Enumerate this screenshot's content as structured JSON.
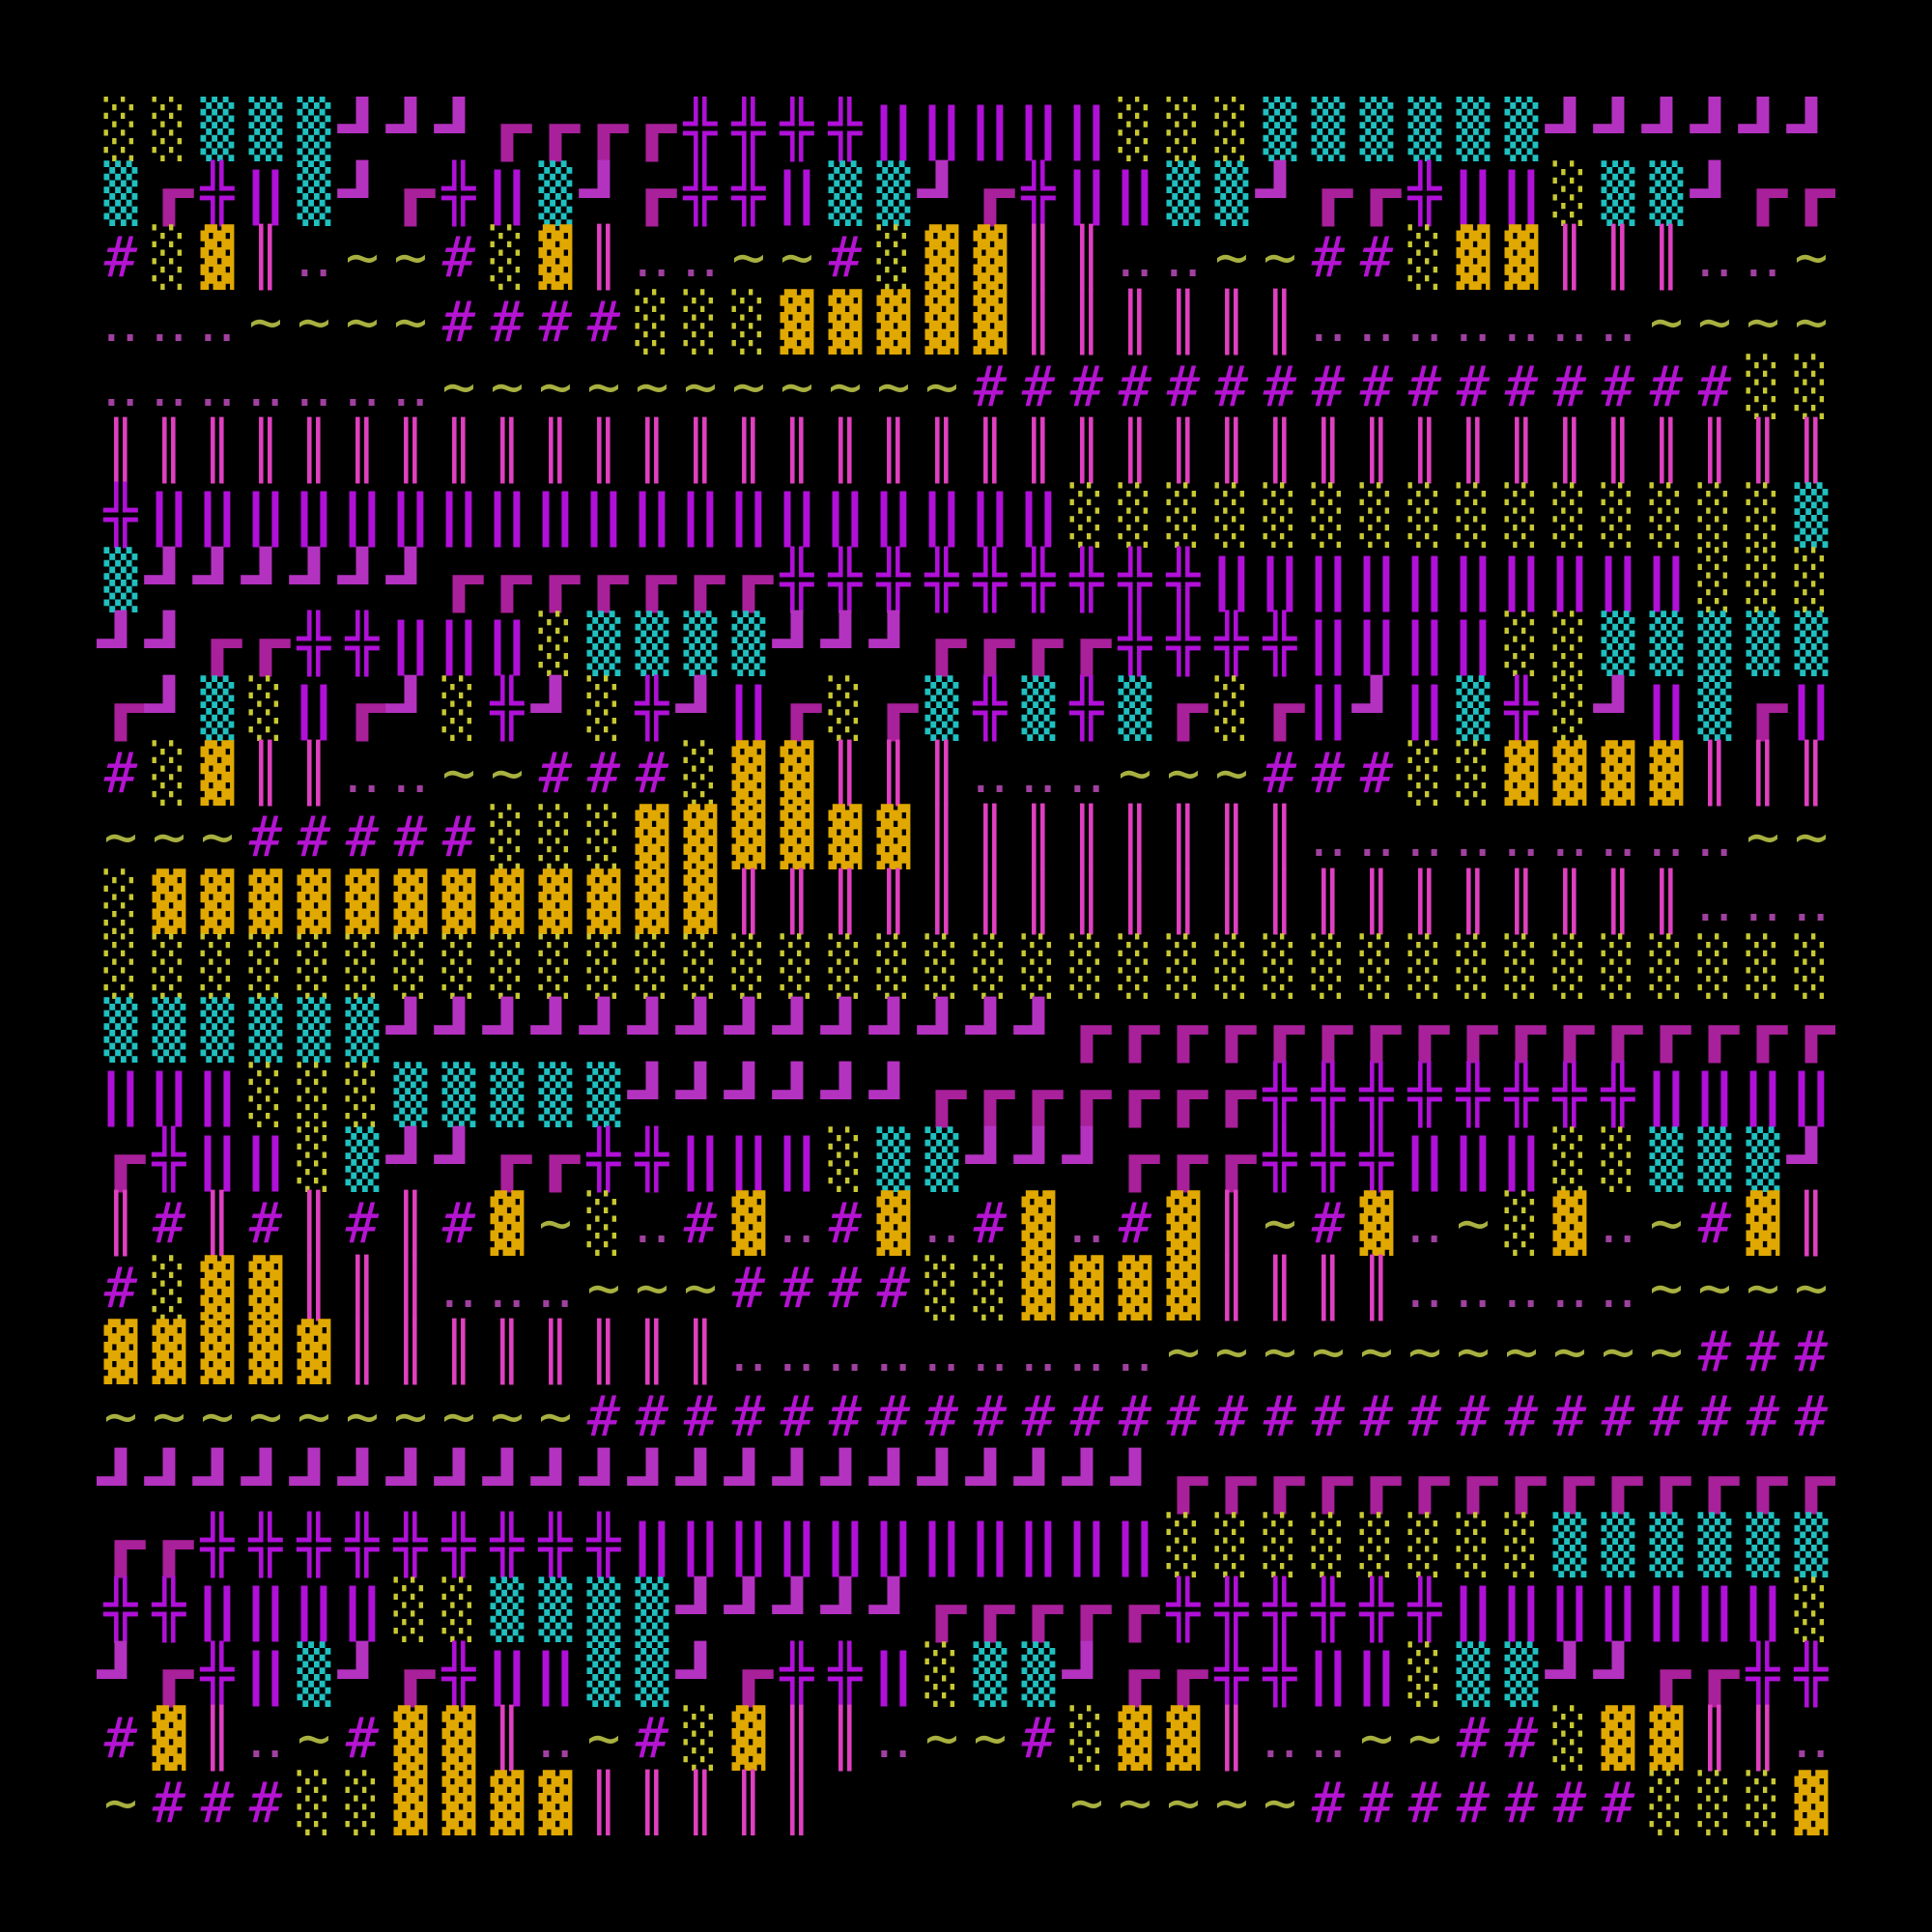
{
  "grid": {
    "rows": [
      "░░▒▒▒┛┛┛┏┏┏┏╬╬╬╬‖‖‖‖‖░░░▒▒▒▒▒▒┛┛┛┛┛┛",
      "▒┏╬‖▒┛┏╬‖▒┛┏╬╬‖▒▒┛┏╬‖‖▒▒┛┏┏╬‖‖░▒▒┛┏┏",
      "#░▓║‥~~#░▓║‥‥~~#░▓▓║║‥‥~~##░▓▓║║║‥‥~",
      "‥‥‥~~~~####░░░▓▓▓▓▓║║║║║║‥‥‥‥‥‥‥~~~~",
      "‥‥‥‥‥‥‥~~~~~~~~~~~################░░",
      "║║║║║║║║║║║║║║║║║║║║║║║║║║║║║║║║║║║║",
      "╬‖‖‖‖‖‖‖‖‖‖‖‖‖‖‖‖‖‖‖░░░░░░░░░░░░░░░▒",
      "▒┛┛┛┛┛┛┏┏┏┏┏┏┏╬╬╬╬╬╬╬╬╬‖‖‖‖‖‖‖‖‖‖░░░",
      "┛┛┏┏╬╬‖‖‖░▒▒▒▒┛┛┛┏┏┏┏╬╬╬╬‖‖‖‖░░▒▒▒▒▒",
      "┏┛▒░‖┏┛░╬┛░╬┛‖┏░┏▒╬▒╬▒┏░┏‖┛‖▒╬░┛‖▒┏‖",
      "#░▓║║‥‥~~###░▓▓║║║‥‥‥~~~###░░▓▓▓▓║║║",
      "~~~#####░░░▓▓▓▓▓▓║║║║║║║║‥‥‥‥‥‥‥‥‥~~",
      "░▓▓▓▓▓▓▓▓▓▓▓▓║║║║║║║║║║║║║║║║║║║║‥‥‥",
      "░░░░░░░░░░░░░░░░░░░░░░░░░░░░░░░░░░░░",
      "▒▒▒▒▒▒┛┛┛┛┛┛┛┛┛┛┛┛┛┛┏┏┏┏┏┏┏┏┏┏┏┏┏┏┏┏",
      "‖‖‖░░░▒▒▒▒▒┛┛┛┛┛┛┏┏┏┏┏┏┏╬╬╬╬╬╬╬╬‖‖‖‖",
      "┏╬‖‖░▒┛┛┏┏╬╬‖‖‖░▒▒┛┛┛┏┏┏╬╬╬‖‖‖░░▒▒▒┛",
      "║#║#║#║#▓~░‥#▓‥#▓‥#▓‥#▓║~#▓‥~░▓‥~#▓║",
      "#░▓▓║║║‥‥‥~~~####░░▓▓▓▓║║║║‥‥‥‥‥~~~~",
      "▓▓▓▓▓║║║║║║║║‥‥‥‥‥‥‥‥‥~~~~~~~~~~~###",
      "~~~~~~~~~~##########################",
      "┛┛┛┛┛┛┛┛┛┛┛┛┛┛┛┛┛┛┛┛┛┛┏┏┏┏┏┏┏┏┏┏┏┏┏┏",
      "┏┏╬╬╬╬╬╬╬╬╬‖‖‖‖‖‖‖‖‖‖‖░░░░░░░░▒▒▒▒▒▒",
      "╬╬‖‖‖‖░░▒▒▒▒┛┛┛┛┛┏┏┏┏┏╬╬╬╬╬╬‖‖‖‖‖‖‖░",
      "┛┏╬‖▒┛┏╬‖‖▒▒┛┏╬╬‖░▒▒┛┏┏╬╬‖‖░▒▒┛┛┏┏╬╬",
      "#▓║‥~#▓▓║‥~#░▓║║‥~~#░▓▓║‥‥~~##░▓▓║║‥",
      "~###░░▓▓▓▓║║║║║     ~~~~~#######░░░▓"
    ]
  },
  "colors": {
    "background": "#000000",
    "light_shade": "#c8c832",
    "medium_shade": "#20c0c0",
    "dark_shade": "#e0a800",
    "double_cross": "#b010d8",
    "wide_bars": "#b010d8",
    "double_bar": "#e040c0",
    "hash": "#b414d2",
    "dots": "#a040a0",
    "tilde": "#a8b040",
    "corner_bottom_right": "#b432c0",
    "corner_top_left": "#a8209a"
  }
}
